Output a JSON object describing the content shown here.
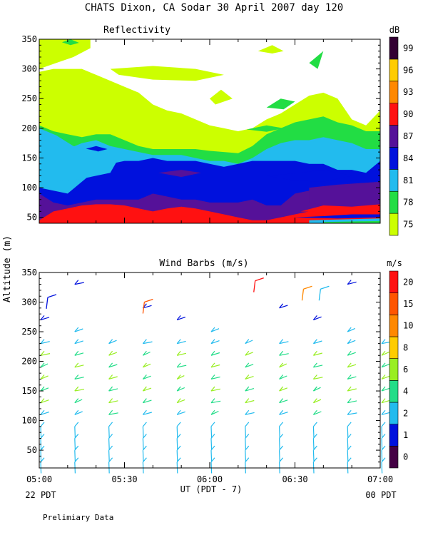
{
  "page": {
    "title": "CHATS Dixon, CA  Sodar  30 April 2007  day 120",
    "shared_ylabel": "Altitude (m)",
    "xlabel": "UT  (PDT - 7)",
    "left_date_label": "22 PDT",
    "right_date_label": "00 PDT",
    "footnote": "Prelimiary Data"
  },
  "chart_data": [
    {
      "type": "heatmap",
      "title": "Reflectivity",
      "colorbar_title": "dB",
      "x_ticks": [
        "05:00",
        "05:30",
        "06:00",
        "06:30",
        "07:00"
      ],
      "x_range": [
        0,
        120
      ],
      "x_units": "minutes after 05:00 UT",
      "y_ticks": [
        50,
        100,
        150,
        200,
        250,
        300,
        350
      ],
      "ylim": [
        40,
        350
      ],
      "levels": [
        75,
        78,
        81,
        84,
        87,
        90,
        93,
        96,
        99
      ],
      "level_colors": [
        "#ccff00",
        "#22dd44",
        "#22bbee",
        "#0011dd",
        "#551199",
        "#ff1111",
        "#ff8800",
        "#ffcc00",
        "#330033"
      ],
      "contour_x": [
        0,
        5,
        10,
        15,
        20,
        25,
        30,
        35,
        40,
        45,
        50,
        55,
        60,
        65,
        70,
        75,
        80,
        85,
        90,
        95,
        100,
        105,
        110,
        115,
        120
      ],
      "contour_boundaries": [
        {
          "level": 75,
          "tops": [
            295,
            300,
            300,
            300,
            290,
            280,
            270,
            260,
            240,
            230,
            225,
            215,
            205,
            200,
            195,
            200,
            215,
            225,
            240,
            255,
            260,
            250,
            215,
            205,
            230
          ]
        },
        {
          "level": 78,
          "tops": [
            205,
            195,
            190,
            185,
            190,
            190,
            180,
            170,
            165,
            165,
            165,
            165,
            162,
            160,
            158,
            170,
            190,
            200,
            210,
            215,
            220,
            210,
            205,
            195,
            195
          ]
        },
        {
          "level": 81,
          "tops": [
            185,
            175,
            165,
            175,
            180,
            170,
            165,
            160,
            155,
            155,
            155,
            150,
            145,
            145,
            140,
            150,
            165,
            175,
            180,
            180,
            185,
            180,
            175,
            165,
            165
          ]
        },
        {
          "level": 84,
          "tops": [
            100,
            95,
            90,
            110,
            130,
            140,
            145,
            145,
            150,
            145,
            145,
            145,
            140,
            135,
            140,
            145,
            145,
            145,
            145,
            140,
            140,
            130,
            130,
            125,
            145
          ]
        },
        {
          "level": 87,
          "tops": [
            90,
            75,
            70,
            75,
            80,
            80,
            80,
            80,
            90,
            85,
            80,
            80,
            75,
            75,
            75,
            80,
            70,
            70,
            90,
            95,
            100,
            100,
            95,
            90,
            90
          ]
        },
        {
          "level": 90,
          "tops": [
            45,
            60,
            65,
            70,
            72,
            72,
            70,
            65,
            60,
            65,
            68,
            65,
            60,
            55,
            50,
            45,
            45,
            50,
            55,
            60,
            65,
            70,
            70,
            65,
            75
          ]
        }
      ]
    },
    {
      "type": "scatter",
      "title": "Wind Barbs (m/s)",
      "colorbar_title": "m/s",
      "x_ticks": [
        "05:00",
        "05:30",
        "06:00",
        "06:30",
        "07:00"
      ],
      "x_range": [
        0,
        120
      ],
      "x_units": "minutes after 05:00 UT",
      "y_ticks": [
        50,
        100,
        150,
        200,
        250,
        300,
        350
      ],
      "ylim": [
        20,
        350
      ],
      "speed_levels": [
        0,
        1,
        2,
        4,
        6,
        8,
        10,
        15,
        20
      ],
      "level_colors": [
        "#440044",
        "#0011dd",
        "#22bbee",
        "#22dd88",
        "#99ee22",
        "#ffcc00",
        "#ff8800",
        "#ff5500",
        "#ff1111"
      ],
      "station_minutes": [
        0,
        12,
        24,
        36,
        48,
        60,
        72,
        84,
        96,
        108,
        120
      ],
      "station_altitudes_m": [
        30,
        50,
        70,
        90,
        110,
        130,
        150,
        170,
        190,
        210,
        230,
        250,
        270,
        290,
        310,
        330
      ]
    }
  ]
}
